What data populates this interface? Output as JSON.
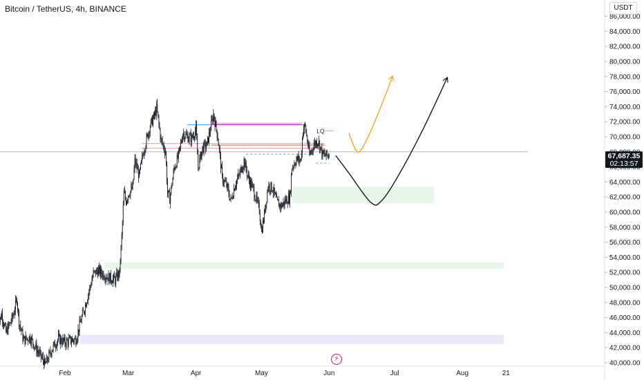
{
  "title": "Bitcoin / TetherUS, 4h, BINANCE",
  "chart_data": {
    "type": "candlestick",
    "symbol": "Bitcoin / TetherUS",
    "interval": "4h",
    "exchange": "BINANCE",
    "unit": "USDT",
    "ylim": [
      40000,
      87000
    ],
    "yticks": [
      86000,
      84000,
      82000,
      80000,
      78000,
      76000,
      74000,
      72000,
      70000,
      68000,
      66000,
      64000,
      62000,
      60000,
      58000,
      56000,
      54000,
      52000,
      50000,
      48000,
      46000,
      44000,
      42000,
      40000
    ],
    "ytick_labels": [
      "86,000.00",
      "84,000.00",
      "82,000.00",
      "80,000.00",
      "78,000.00",
      "76,000.00",
      "74,000.00",
      "72,000.00",
      "70,000.00",
      "68,000.00",
      "66,000.00",
      "64,000.00",
      "62,000.00",
      "60,000.00",
      "58,000.00",
      "56,000.00",
      "54,000.00",
      "52,000.00",
      "50,000.00",
      "48,000.00",
      "46,000.00",
      "44,000.00",
      "42,000.00",
      "40,000.00"
    ],
    "xlim": [
      "2024-01-01",
      "2024-08-31"
    ],
    "xticks": [
      {
        "date": "2024-02-01",
        "label": "Feb"
      },
      {
        "date": "2024-03-01",
        "label": "Mar"
      },
      {
        "date": "2024-04-01",
        "label": "Apr"
      },
      {
        "date": "2024-05-01",
        "label": "May"
      },
      {
        "date": "2024-06-01",
        "label": "Jun"
      },
      {
        "date": "2024-07-01",
        "label": "Jul"
      },
      {
        "date": "2024-08-01",
        "label": "Aug"
      },
      {
        "date": "2024-08-21",
        "label": "21"
      }
    ],
    "price_path": [
      [
        "2024-01-01",
        44500
      ],
      [
        "2024-01-03",
        46500
      ],
      [
        "2024-01-05",
        44000
      ],
      [
        "2024-01-08",
        46000
      ],
      [
        "2024-01-10",
        48500
      ],
      [
        "2024-01-11",
        45500
      ],
      [
        "2024-01-13",
        43000
      ],
      [
        "2024-01-16",
        43400
      ],
      [
        "2024-01-19",
        41800
      ],
      [
        "2024-01-22",
        40300
      ],
      [
        "2024-01-23",
        39700
      ],
      [
        "2024-01-26",
        41800
      ],
      [
        "2024-01-29",
        43200
      ],
      [
        "2024-02-01",
        42700
      ],
      [
        "2024-02-04",
        43000
      ],
      [
        "2024-02-06",
        43100
      ],
      [
        "2024-02-08",
        45300
      ],
      [
        "2024-02-10",
        47300
      ],
      [
        "2024-02-12",
        49500
      ],
      [
        "2024-02-14",
        51800
      ],
      [
        "2024-02-16",
        52200
      ],
      [
        "2024-02-18",
        51900
      ],
      [
        "2024-02-21",
        51300
      ],
      [
        "2024-02-24",
        51000
      ],
      [
        "2024-02-26",
        52000
      ],
      [
        "2024-02-27",
        56700
      ],
      [
        "2024-02-28",
        62500
      ],
      [
        "2024-02-29",
        61500
      ],
      [
        "2024-03-01",
        62400
      ],
      [
        "2024-03-03",
        63200
      ],
      [
        "2024-03-04",
        66800
      ],
      [
        "2024-03-06",
        64800
      ],
      [
        "2024-03-08",
        68100
      ],
      [
        "2024-03-11",
        71500
      ],
      [
        "2024-03-13",
        72800
      ],
      [
        "2024-03-14",
        73800
      ],
      [
        "2024-03-16",
        69500
      ],
      [
        "2024-03-18",
        68100
      ],
      [
        "2024-03-19",
        62500
      ],
      [
        "2024-03-20",
        61800
      ],
      [
        "2024-03-22",
        65800
      ],
      [
        "2024-03-24",
        67500
      ],
      [
        "2024-03-26",
        70500
      ],
      [
        "2024-03-28",
        70000
      ],
      [
        "2024-03-30",
        69800
      ],
      [
        "2024-04-01",
        71000
      ],
      [
        "2024-04-02",
        66000
      ],
      [
        "2024-04-04",
        68500
      ],
      [
        "2024-04-06",
        68900
      ],
      [
        "2024-04-08",
        71600
      ],
      [
        "2024-04-09",
        73000
      ],
      [
        "2024-04-11",
        70000
      ],
      [
        "2024-04-13",
        64500
      ],
      [
        "2024-04-15",
        63500
      ],
      [
        "2024-04-17",
        61500
      ],
      [
        "2024-04-19",
        63800
      ],
      [
        "2024-04-21",
        65000
      ],
      [
        "2024-04-23",
        66800
      ],
      [
        "2024-04-25",
        64500
      ],
      [
        "2024-04-27",
        63200
      ],
      [
        "2024-04-30",
        60300
      ],
      [
        "2024-05-01",
        57500
      ],
      [
        "2024-05-02",
        59000
      ],
      [
        "2024-05-04",
        63500
      ],
      [
        "2024-05-06",
        63200
      ],
      [
        "2024-05-08",
        61300
      ],
      [
        "2024-05-10",
        60800
      ],
      [
        "2024-05-12",
        61500
      ],
      [
        "2024-05-14",
        62000
      ],
      [
        "2024-05-15",
        66000
      ],
      [
        "2024-05-17",
        67000
      ],
      [
        "2024-05-19",
        66900
      ],
      [
        "2024-05-20",
        71000
      ],
      [
        "2024-05-21",
        71400
      ],
      [
        "2024-05-23",
        67500
      ],
      [
        "2024-05-25",
        69000
      ],
      [
        "2024-05-27",
        69500
      ],
      [
        "2024-05-29",
        67600
      ],
      [
        "2024-05-31",
        67500
      ],
      [
        "2024-06-01",
        67700
      ]
    ],
    "current_price": 67687.35,
    "current_price_label": "67,687.35",
    "countdown": "02:13:57",
    "zones": [
      {
        "from": "2024-05-15",
        "to": "2024-07-19",
        "low": 61200,
        "high": 63400,
        "color": "#e8f5e9"
      },
      {
        "from": "2024-02-19",
        "to": "2024-08-20",
        "low": 52500,
        "high": 53300,
        "color": "#e8f5e9"
      },
      {
        "from": "2024-02-08",
        "to": "2024-08-20",
        "low": 42500,
        "high": 43700,
        "color": "#e8e8f8"
      }
    ],
    "levels": [
      {
        "price": 71800,
        "from": "2024-04-08",
        "to": "2024-05-20",
        "color": "#f48fb1"
      },
      {
        "price": 71600,
        "from": "2024-04-08",
        "to": "2024-05-20",
        "color": "#9c27b0"
      },
      {
        "price": 71600,
        "from": "2024-03-28",
        "to": "2024-04-08",
        "color": "#42a5f5"
      },
      {
        "price": 69100,
        "from": "2024-03-07",
        "to": "2024-05-30",
        "color": "#ef9a9a"
      },
      {
        "price": 68900,
        "from": "2024-04-08",
        "to": "2024-05-30",
        "color": "#ef5350"
      },
      {
        "price": 68500,
        "from": "2024-03-07",
        "to": "2024-05-30",
        "color": "#ef9a9a"
      },
      {
        "price": 68000,
        "from": "2024-01-01",
        "to": "2024-08-31",
        "color": "#b2b5be"
      }
    ],
    "dashed_levels": [
      {
        "price": 67700,
        "from": "2024-04-24",
        "to": "2024-05-23",
        "color": "#5c8cf0"
      },
      {
        "price": 66500,
        "from": "2024-05-26",
        "to": "2024-06-01",
        "color": "#5c8cf0"
      }
    ],
    "annotation": {
      "text": "LQ",
      "date": "2024-05-25",
      "price": 70800
    },
    "projections": [
      {
        "color": "#f5a623",
        "points": [
          [
            "2024-06-10",
            70500
          ],
          [
            "2024-06-14",
            68000
          ],
          [
            "2024-06-18",
            69500
          ],
          [
            "2024-06-24",
            73500
          ],
          [
            "2024-06-30",
            78000
          ]
        ]
      },
      {
        "color": "#131722",
        "points": [
          [
            "2024-06-04",
            67500
          ],
          [
            "2024-06-10",
            65200
          ],
          [
            "2024-06-20",
            61300
          ],
          [
            "2024-06-25",
            61500
          ],
          [
            "2024-07-03",
            65000
          ],
          [
            "2024-07-14",
            71000
          ],
          [
            "2024-07-25",
            77800
          ]
        ]
      }
    ]
  }
}
